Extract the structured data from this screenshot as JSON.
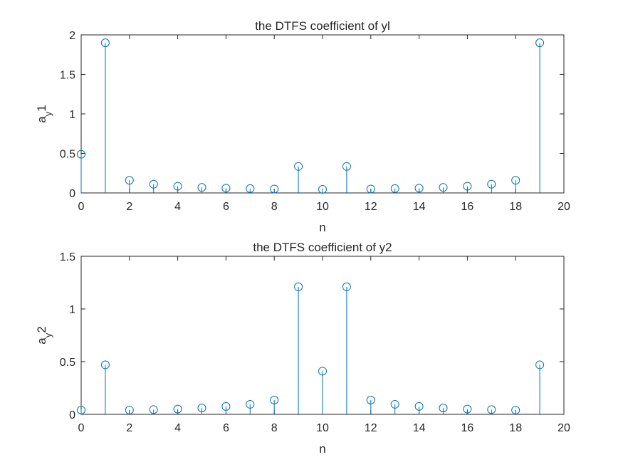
{
  "colors": {
    "stem": "#0072BD",
    "axes": "#262626",
    "background": "#ffffff"
  },
  "chart_data": [
    {
      "type": "stem",
      "title": "the DTFS coefficient of yl",
      "xlabel": "n",
      "ylabel_main": "a",
      "ylabel_sub": "y",
      "ylabel_suffix": "1",
      "xlim": [
        0,
        20
      ],
      "ylim": [
        0,
        2
      ],
      "xticks": [
        0,
        2,
        4,
        6,
        8,
        10,
        12,
        14,
        16,
        18,
        20
      ],
      "yticks": [
        0,
        0.5,
        1,
        1.5,
        2
      ],
      "x": [
        0,
        1,
        2,
        3,
        4,
        5,
        6,
        7,
        8,
        9,
        10,
        11,
        12,
        13,
        14,
        15,
        16,
        17,
        18,
        19
      ],
      "values": [
        0.49,
        1.9,
        0.16,
        0.11,
        0.085,
        0.07,
        0.06,
        0.055,
        0.05,
        0.335,
        0.045,
        0.335,
        0.05,
        0.055,
        0.06,
        0.07,
        0.085,
        0.11,
        0.16,
        1.9
      ]
    },
    {
      "type": "stem",
      "title": "the DTFS coefficient of y2",
      "xlabel": "n",
      "ylabel_main": "a",
      "ylabel_sub": "y",
      "ylabel_suffix": "2",
      "xlim": [
        0,
        20
      ],
      "ylim": [
        0,
        1.5
      ],
      "xticks": [
        0,
        2,
        4,
        6,
        8,
        10,
        12,
        14,
        16,
        18,
        20
      ],
      "yticks": [
        0,
        0.5,
        1,
        1.5
      ],
      "x": [
        0,
        1,
        2,
        3,
        4,
        5,
        6,
        7,
        8,
        9,
        10,
        11,
        12,
        13,
        14,
        15,
        16,
        17,
        18,
        19
      ],
      "values": [
        0.04,
        0.47,
        0.04,
        0.045,
        0.05,
        0.06,
        0.075,
        0.095,
        0.135,
        1.21,
        0.41,
        1.21,
        0.135,
        0.095,
        0.075,
        0.06,
        0.05,
        0.045,
        0.04,
        0.47
      ]
    }
  ]
}
